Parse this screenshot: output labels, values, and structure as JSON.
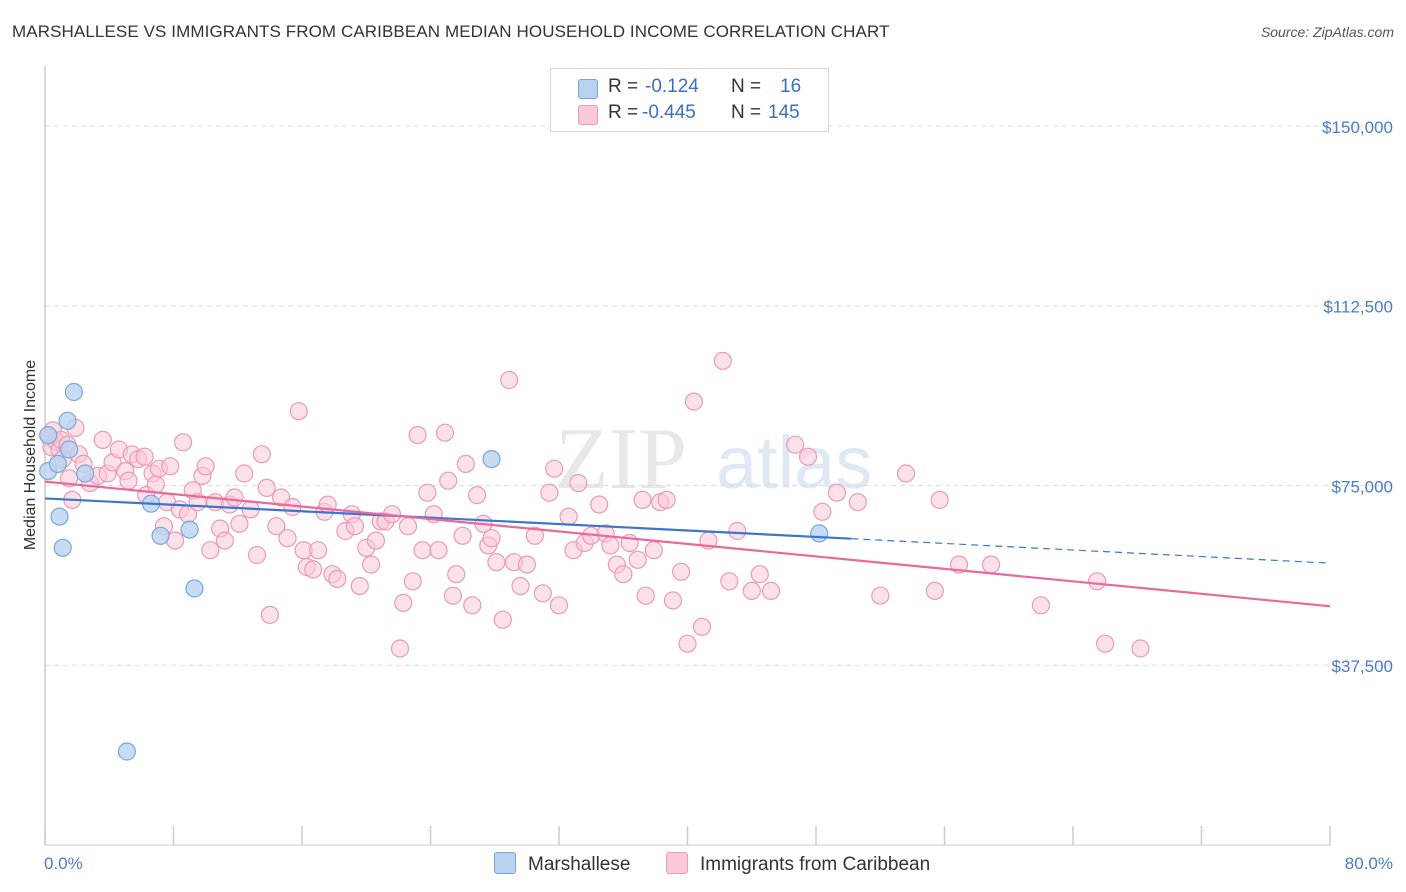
{
  "title": "MARSHALLESE VS IMMIGRANTS FROM CARIBBEAN MEDIAN HOUSEHOLD INCOME CORRELATION CHART",
  "source": "Source: ZipAtlas.com",
  "watermark": {
    "zip": "ZIP",
    "atlas": "atlas"
  },
  "legend": {
    "rows": [
      {
        "r_label": "R =",
        "r_value": "-0.124",
        "n_label": "N =",
        "n_value": "16"
      },
      {
        "r_label": "R =",
        "r_value": "-0.445",
        "n_label": "N =",
        "n_value": "145"
      }
    ],
    "bottom": [
      "Marshallese",
      "Immigrants from Caribbean"
    ]
  },
  "colors": {
    "blue_fill": "#b9d2f0",
    "blue_stroke": "#7aa6dc",
    "blue_line": "#3a76cc",
    "pink_fill": "#f9c9d8",
    "pink_stroke": "#ec9ab5",
    "pink_line": "#e8699a",
    "tick_text": "#4a7cc7",
    "grid": "#dddddd"
  },
  "chart_data": {
    "type": "scatter",
    "title": "MARSHALLESE VS IMMIGRANTS FROM CARIBBEAN MEDIAN HOUSEHOLD INCOME CORRELATION CHART",
    "xlabel": "",
    "ylabel": "Median Household Income",
    "xlim": [
      0,
      80
    ],
    "ylim": [
      0,
      160000
    ],
    "x_tick_labels": [
      "0.0%",
      "80.0%"
    ],
    "y_ticks": [
      {
        "value": 150000,
        "label": "$150,000"
      },
      {
        "value": 112500,
        "label": "$112,500"
      },
      {
        "value": 75000,
        "label": "$75,000"
      },
      {
        "value": 37500,
        "label": "$37,500"
      }
    ],
    "grid": true,
    "series": [
      {
        "name": "Marshallese",
        "color": "blue",
        "R": -0.124,
        "N": 16,
        "trend": {
          "x0": 0,
          "y0": 72300,
          "x1": 50.2,
          "y1": 63900,
          "dash_to_x": 80,
          "dash_to_y": 58800
        },
        "points": [
          [
            0.2,
            85500
          ],
          [
            0.2,
            78000
          ],
          [
            0.8,
            79500
          ],
          [
            0.9,
            68500
          ],
          [
            1.1,
            62000
          ],
          [
            1.4,
            88500
          ],
          [
            1.5,
            82500
          ],
          [
            1.8,
            94500
          ],
          [
            2.5,
            77500
          ],
          [
            6.6,
            71200
          ],
          [
            7.2,
            64500
          ],
          [
            9.0,
            65800
          ],
          [
            9.3,
            53500
          ],
          [
            5.1,
            19500
          ],
          [
            27.8,
            80500
          ],
          [
            48.2,
            65000
          ]
        ]
      },
      {
        "name": "Immigrants from Caribbean",
        "color": "pink",
        "R": -0.445,
        "N": 145,
        "trend": {
          "x0": 0,
          "y0": 75800,
          "x1": 80,
          "y1": 49800
        },
        "points": [
          [
            0.3,
            85000
          ],
          [
            0.4,
            83000
          ],
          [
            0.5,
            86500
          ],
          [
            0.7,
            84200
          ],
          [
            0.9,
            82500
          ],
          [
            1.0,
            84500
          ],
          [
            1.1,
            80500
          ],
          [
            1.4,
            83500
          ],
          [
            1.5,
            76500
          ],
          [
            1.7,
            72000
          ],
          [
            1.9,
            87000
          ],
          [
            2.1,
            81500
          ],
          [
            2.4,
            79500
          ],
          [
            2.8,
            75500
          ],
          [
            3.3,
            77000
          ],
          [
            3.6,
            84500
          ],
          [
            3.9,
            77500
          ],
          [
            4.2,
            79800
          ],
          [
            4.6,
            82500
          ],
          [
            5.0,
            78000
          ],
          [
            5.2,
            76000
          ],
          [
            5.4,
            81500
          ],
          [
            5.8,
            80500
          ],
          [
            6.2,
            81000
          ],
          [
            6.3,
            73000
          ],
          [
            6.7,
            77500
          ],
          [
            6.9,
            75200
          ],
          [
            7.1,
            78500
          ],
          [
            7.4,
            66500
          ],
          [
            7.6,
            71500
          ],
          [
            7.8,
            79000
          ],
          [
            8.1,
            63500
          ],
          [
            8.4,
            70000
          ],
          [
            8.6,
            84000
          ],
          [
            8.9,
            69000
          ],
          [
            9.2,
            74000
          ],
          [
            9.5,
            71500
          ],
          [
            9.8,
            77000
          ],
          [
            10.0,
            79000
          ],
          [
            10.3,
            61500
          ],
          [
            10.6,
            71500
          ],
          [
            10.9,
            66000
          ],
          [
            11.2,
            63500
          ],
          [
            11.5,
            71000
          ],
          [
            11.8,
            72500
          ],
          [
            12.1,
            67000
          ],
          [
            12.4,
            77500
          ],
          [
            12.8,
            70000
          ],
          [
            13.2,
            60500
          ],
          [
            13.5,
            81500
          ],
          [
            13.8,
            74500
          ],
          [
            14.0,
            48000
          ],
          [
            14.4,
            66500
          ],
          [
            14.7,
            72500
          ],
          [
            15.1,
            64000
          ],
          [
            15.4,
            70500
          ],
          [
            15.8,
            90500
          ],
          [
            16.1,
            61500
          ],
          [
            16.3,
            58000
          ],
          [
            16.7,
            57500
          ],
          [
            17.0,
            61500
          ],
          [
            17.4,
            69500
          ],
          [
            17.6,
            71000
          ],
          [
            17.9,
            56500
          ],
          [
            18.2,
            55500
          ],
          [
            18.7,
            65500
          ],
          [
            19.1,
            69000
          ],
          [
            19.3,
            66500
          ],
          [
            19.6,
            54000
          ],
          [
            20.0,
            62000
          ],
          [
            20.3,
            58500
          ],
          [
            20.6,
            63500
          ],
          [
            20.9,
            67500
          ],
          [
            21.2,
            67500
          ],
          [
            21.6,
            69000
          ],
          [
            22.1,
            41000
          ],
          [
            22.3,
            50500
          ],
          [
            22.6,
            66500
          ],
          [
            22.9,
            55000
          ],
          [
            23.2,
            85500
          ],
          [
            23.5,
            61500
          ],
          [
            23.8,
            73500
          ],
          [
            24.2,
            69000
          ],
          [
            24.5,
            61500
          ],
          [
            24.9,
            86000
          ],
          [
            25.1,
            76000
          ],
          [
            25.4,
            52000
          ],
          [
            25.6,
            56500
          ],
          [
            26.0,
            64500
          ],
          [
            26.2,
            79500
          ],
          [
            26.6,
            50000
          ],
          [
            26.9,
            73000
          ],
          [
            27.3,
            67000
          ],
          [
            27.6,
            62500
          ],
          [
            27.8,
            64000
          ],
          [
            28.1,
            59000
          ],
          [
            28.5,
            47000
          ],
          [
            28.9,
            97000
          ],
          [
            29.2,
            59000
          ],
          [
            29.6,
            54000
          ],
          [
            30.0,
            58500
          ],
          [
            30.5,
            64500
          ],
          [
            31.0,
            52500
          ],
          [
            31.4,
            73500
          ],
          [
            31.7,
            78500
          ],
          [
            32.0,
            50000
          ],
          [
            32.6,
            68500
          ],
          [
            32.9,
            61500
          ],
          [
            33.2,
            75500
          ],
          [
            33.6,
            63000
          ],
          [
            34.0,
            64500
          ],
          [
            34.5,
            71000
          ],
          [
            34.9,
            65000
          ],
          [
            35.2,
            62500
          ],
          [
            35.6,
            58500
          ],
          [
            36.0,
            56500
          ],
          [
            36.4,
            63000
          ],
          [
            36.9,
            59500
          ],
          [
            37.2,
            72000
          ],
          [
            37.4,
            52000
          ],
          [
            37.9,
            61500
          ],
          [
            38.3,
            71500
          ],
          [
            38.7,
            72000
          ],
          [
            39.1,
            51000
          ],
          [
            39.6,
            57000
          ],
          [
            40.0,
            42000
          ],
          [
            40.4,
            92500
          ],
          [
            40.9,
            45500
          ],
          [
            41.3,
            63500
          ],
          [
            42.2,
            101000
          ],
          [
            42.6,
            55000
          ],
          [
            43.1,
            65500
          ],
          [
            44.0,
            53000
          ],
          [
            44.5,
            56500
          ],
          [
            45.2,
            53000
          ],
          [
            46.7,
            83500
          ],
          [
            47.5,
            81000
          ],
          [
            48.4,
            69500
          ],
          [
            49.3,
            73500
          ],
          [
            50.6,
            71500
          ],
          [
            52.0,
            52000
          ],
          [
            53.6,
            77500
          ],
          [
            55.4,
            53000
          ],
          [
            55.7,
            72000
          ],
          [
            56.9,
            58500
          ],
          [
            58.9,
            58500
          ],
          [
            62.0,
            50000
          ],
          [
            65.5,
            55000
          ],
          [
            66.0,
            42000
          ],
          [
            68.2,
            41000
          ]
        ]
      }
    ]
  }
}
